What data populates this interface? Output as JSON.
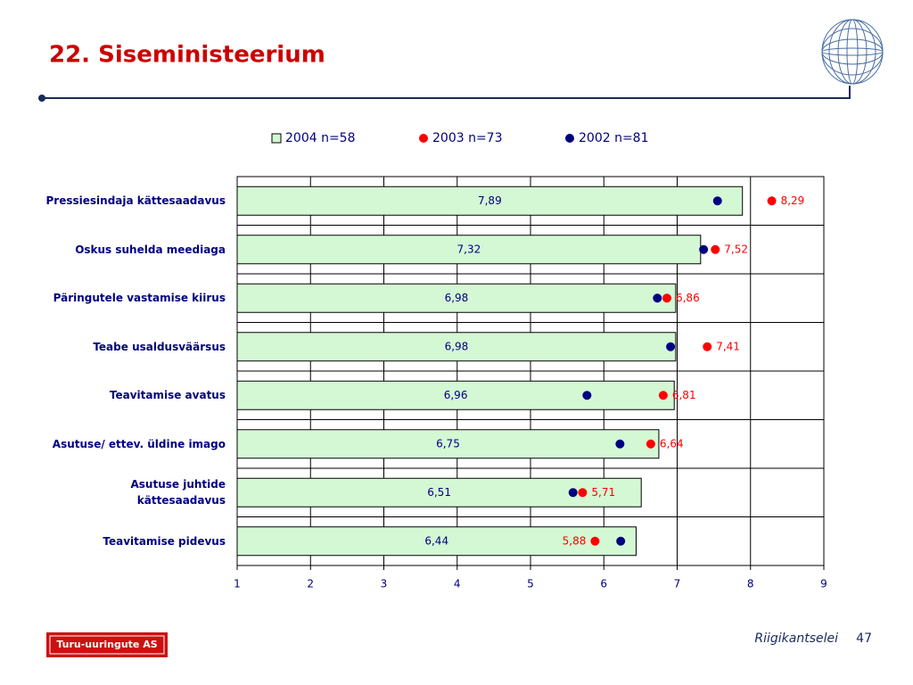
{
  "slide": {
    "title": "22. Siseministeerium",
    "footer": "Riigikantselei",
    "page": "47",
    "logo": "Turu-uuringute AS"
  },
  "chart_data": {
    "type": "bar",
    "orientation": "horizontal",
    "categories": [
      "Pressiesindaja kättesaadavus",
      "Oskus suhelda meediaga",
      "Päringutele vastamise kiirus",
      "Teabe usaldusväärsus",
      "Teavitamise avatus",
      "Asutuse/ ettev. üldine imago",
      "Asutuse juhtide kättesaadavus",
      "Teavitamise pidevus"
    ],
    "series": [
      {
        "name": "2004 n=58",
        "color": "#d4f7d4",
        "mark": "bar",
        "values": [
          7.89,
          7.32,
          6.98,
          6.98,
          6.96,
          6.75,
          6.51,
          6.44
        ],
        "value_labels": [
          "7,89",
          "7,32",
          "6,98",
          "6,98",
          "6,96",
          "6,75",
          "6,51",
          "6,44"
        ]
      },
      {
        "name": "2003 n=73",
        "color": "#ff0000",
        "mark": "dot",
        "values": [
          8.29,
          7.52,
          6.86,
          7.41,
          6.81,
          6.64,
          5.71,
          5.88
        ],
        "value_labels": [
          "8,29",
          "7,52",
          "6,86",
          "7,41",
          "6,81",
          "6,64",
          "5,71",
          "5,88"
        ]
      },
      {
        "name": "2002 n=81",
        "color": "#000080",
        "mark": "dot",
        "values": [
          7.55,
          7.36,
          6.73,
          6.91,
          5.77,
          6.22,
          5.58,
          6.23
        ]
      }
    ],
    "xlim": [
      1,
      9
    ],
    "xticks": [
      1,
      2,
      3,
      4,
      5,
      6,
      7,
      8,
      9
    ],
    "grid": true,
    "legend": "top"
  }
}
